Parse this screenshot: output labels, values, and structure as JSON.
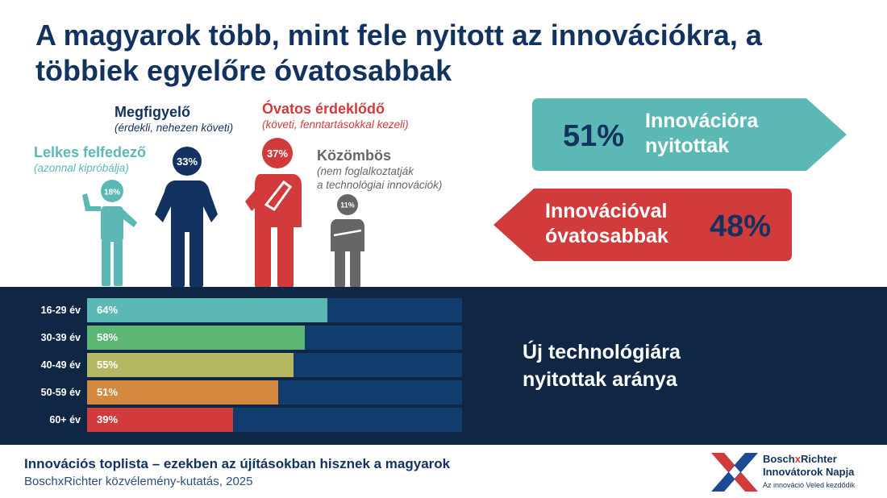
{
  "title": "A magyarok több, mint fele nyitott az innovációkra, a többiek egyelőre óvatosabbak",
  "personas": [
    {
      "name": "Lelkes felfedező",
      "desc": "(azonnal kipróbálja)",
      "pct": "18%",
      "color": "#5cb8b4"
    },
    {
      "name": "Megfigyelő",
      "desc": "(érdekli, nehezen követi)",
      "pct": "33%",
      "color": "#12325f"
    },
    {
      "name": "Óvatos érdeklődő",
      "desc": "(követi, fenntartásokkal kezeli)",
      "pct": "37%",
      "color": "#d13b3b"
    },
    {
      "name": "Közömbös",
      "desc1": "(nem foglalkoztatják",
      "desc2": "a technológiai innovációk)",
      "pct": "11%",
      "color": "#666666"
    }
  ],
  "open_arrow": {
    "pct": "51%",
    "line1": "Innovációra",
    "line2": "nyitottak",
    "color": "#5cb8b4"
  },
  "cautious_arrow": {
    "line1": "Innovációval",
    "line2": "óvatosabbak",
    "pct": "48%",
    "color": "#d13b3b"
  },
  "band_label": {
    "line1": "Új technológiára",
    "line2": "nyitottak aránya"
  },
  "chart_data": {
    "type": "bar",
    "orientation": "horizontal",
    "categories": [
      "16-29 év",
      "30-39 év",
      "40-49 év",
      "50-59 év",
      "60+ év"
    ],
    "values": [
      64,
      58,
      55,
      51,
      39
    ],
    "labels": [
      "64%",
      "58%",
      "55%",
      "51%",
      "39%"
    ],
    "colors": [
      "#5cb8b4",
      "#5db774",
      "#b5b862",
      "#d4873f",
      "#d13b3b"
    ],
    "xlim": [
      0,
      100
    ],
    "title": "Új technológiára nyitottak aránya",
    "grid": false
  },
  "footer": {
    "title": "Innovációs toplista – ezekben az újításokban hisznek a magyarok",
    "subtitle": "BoschxRichter közvélemény-kutatás, 2025"
  },
  "logo": {
    "line1_a": "Bosch",
    "line1_x": "x",
    "line1_b": "Richter",
    "line2": "Innovátorok Napja",
    "line3": "Az innováció Veled kezdődik",
    "x_color": "#d13b3b"
  }
}
